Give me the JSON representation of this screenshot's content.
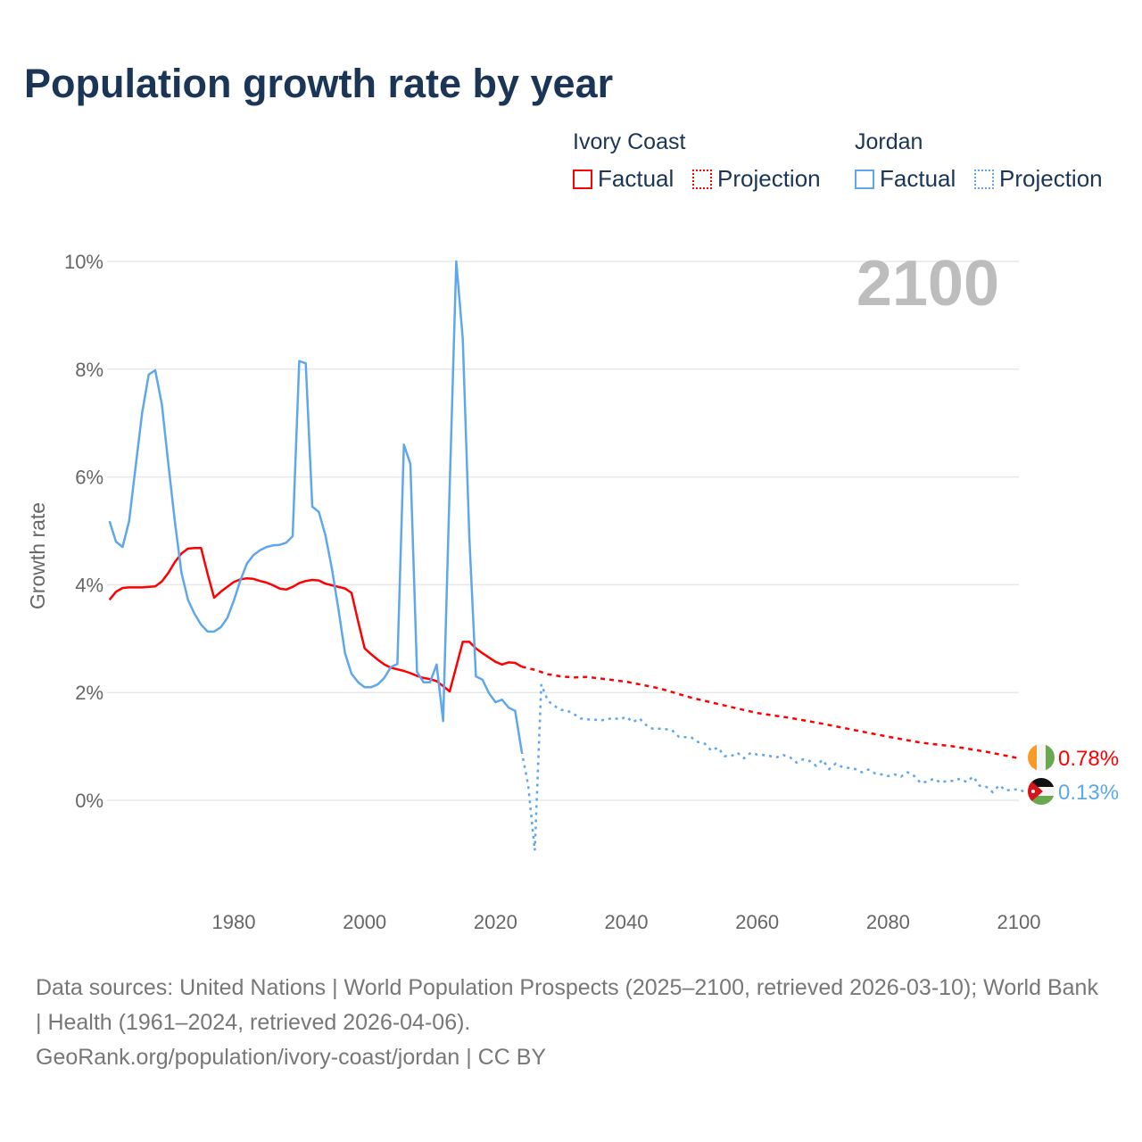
{
  "chart_data": {
    "type": "line",
    "title": "Population growth rate by year",
    "ylabel": "Growth rate",
    "xlabel": "",
    "xlim": [
      1961,
      2100
    ],
    "ylim": [
      -1.8,
      10
    ],
    "x_ticks": [
      1980,
      2000,
      2020,
      2040,
      2060,
      2080,
      2100
    ],
    "x_tick_labels": [
      "1980",
      "2000",
      "2020",
      "2040",
      "2060",
      "2080",
      "2100"
    ],
    "y_ticks": [
      0,
      2,
      4,
      6,
      8,
      10
    ],
    "y_tick_labels": [
      "0%",
      "2%",
      "4%",
      "6%",
      "8%",
      "10%"
    ],
    "grid": true,
    "year_watermark": "2100",
    "legend": {
      "placement": "top-right",
      "groups": [
        {
          "name": "Ivory Coast",
          "factual_label": "Factual",
          "projection_label": "Projection"
        },
        {
          "name": "Jordan",
          "factual_label": "Factual",
          "projection_label": "Projection"
        }
      ]
    },
    "series": [
      {
        "name": "Ivory Coast",
        "color": "#ff0000",
        "end_label": "0.78%",
        "factual": {
          "start_year": 1961,
          "values": [
            3.72,
            3.87,
            3.94,
            3.95,
            3.95,
            3.95,
            3.96,
            3.97,
            4.06,
            4.22,
            4.42,
            4.58,
            4.67,
            4.68,
            4.68,
            4.2,
            3.76,
            3.87,
            3.96,
            4.05,
            4.1,
            4.12,
            4.11,
            4.07,
            4.04,
            3.99,
            3.93,
            3.91,
            3.96,
            4.03,
            4.07,
            4.09,
            4.08,
            4.02,
            3.99,
            3.96,
            3.93,
            3.85,
            3.32,
            2.82,
            2.71,
            2.61,
            2.52,
            2.46,
            2.43,
            2.4,
            2.36,
            2.31,
            2.27,
            2.25,
            2.21,
            2.12,
            2.02,
            2.48,
            2.94,
            2.94,
            2.82,
            2.73,
            2.65,
            2.57,
            2.52,
            2.56,
            2.55,
            2.48
          ]
        },
        "projection": {
          "years": [
            2024,
            2025,
            2026,
            2027,
            2028,
            2030,
            2032,
            2034,
            2036,
            2040,
            2045,
            2050,
            2055,
            2060,
            2065,
            2070,
            2075,
            2080,
            2085,
            2090,
            2095,
            2100
          ],
          "values": [
            2.48,
            2.45,
            2.42,
            2.38,
            2.34,
            2.3,
            2.28,
            2.29,
            2.26,
            2.2,
            2.08,
            1.9,
            1.76,
            1.62,
            1.53,
            1.42,
            1.3,
            1.18,
            1.07,
            1.0,
            0.9,
            0.78
          ]
        }
      },
      {
        "name": "Jordan",
        "color": "#5ea7ec",
        "end_label": "0.13%",
        "factual": {
          "start_year": 1961,
          "values": [
            5.18,
            4.8,
            4.7,
            5.18,
            6.19,
            7.2,
            7.9,
            7.98,
            7.35,
            6.24,
            5.17,
            4.22,
            3.72,
            3.46,
            3.26,
            3.13,
            3.13,
            3.21,
            3.38,
            3.7,
            4.08,
            4.39,
            4.55,
            4.64,
            4.7,
            4.73,
            4.74,
            4.78,
            4.9,
            8.15,
            8.11,
            5.45,
            5.35,
            4.92,
            4.3,
            3.54,
            2.73,
            2.35,
            2.19,
            2.1,
            2.1,
            2.15,
            2.27,
            2.47,
            2.53,
            6.6,
            6.24,
            2.38,
            2.19,
            2.19,
            2.52,
            1.47,
            5.8,
            10.0,
            8.56,
            4.9,
            2.3,
            2.24,
            1.99,
            1.82,
            1.87,
            1.72,
            1.66,
            0.91
          ]
        },
        "projection": {
          "start_year": 2024,
          "values": [
            0.91,
            0.28,
            -0.93,
            2.15,
            1.85,
            1.75,
            1.68,
            1.66,
            1.6,
            1.52,
            1.5,
            1.5,
            1.48,
            1.5,
            1.53,
            1.5,
            1.55,
            1.45,
            1.52,
            1.4,
            1.33,
            1.33,
            1.32,
            1.3,
            1.18,
            1.17,
            1.16,
            1.08,
            1.05,
            0.92,
            0.98,
            0.82,
            0.82,
            0.88,
            0.78,
            0.88,
            0.85,
            0.84,
            0.82,
            0.8,
            0.84,
            0.8,
            0.7,
            0.76,
            0.73,
            0.64,
            0.75,
            0.58,
            0.68,
            0.62,
            0.6,
            0.58,
            0.52,
            0.57,
            0.5,
            0.48,
            0.45,
            0.48,
            0.44,
            0.52,
            0.45,
            0.32,
            0.35,
            0.4,
            0.33,
            0.36,
            0.36,
            0.4,
            0.34,
            0.44,
            0.27,
            0.25,
            0.15,
            0.28,
            0.18,
            0.2,
            0.2,
            0.15,
            0.14,
            0.13
          ]
        }
      }
    ]
  },
  "footer": {
    "sources": "Data sources: United Nations | World Population Prospects (2025–2100, retrieved 2026-03-10); World Bank | Health (1961–2024, retrieved 2026-04-06).",
    "credit": "GeoRank.org/population/ivory-coast/jordan | CC BY"
  }
}
